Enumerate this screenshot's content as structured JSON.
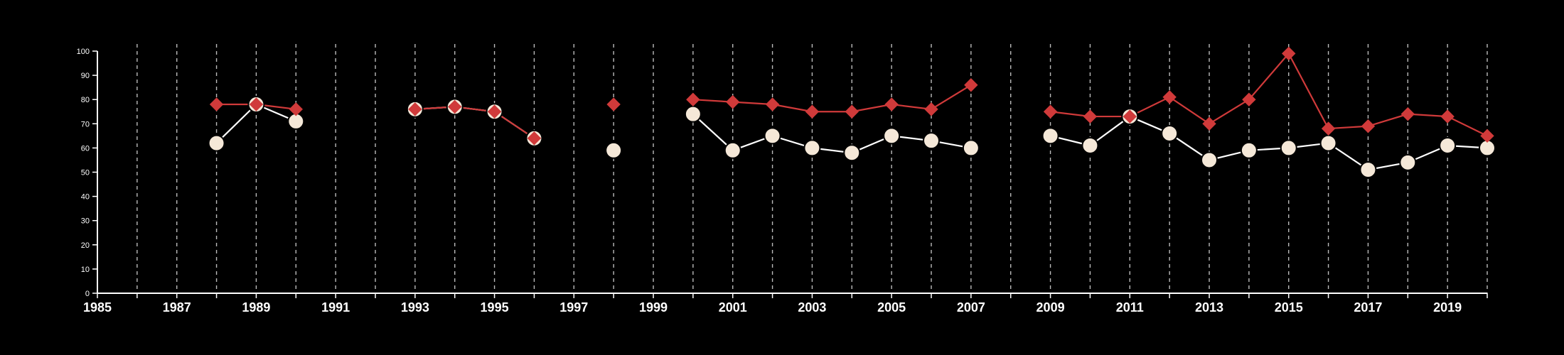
{
  "chart_data": {
    "type": "line",
    "title": "",
    "xlabel": "",
    "ylabel": "",
    "xlim": [
      1985,
      2020
    ],
    "ylim": [
      0,
      100
    ],
    "x_ticks": [
      1985,
      1987,
      1989,
      1991,
      1993,
      1995,
      1997,
      1999,
      2001,
      2003,
      2005,
      2007,
      2009,
      2011,
      2013,
      2015,
      2017,
      2019
    ],
    "y_ticks": [
      0,
      10,
      20,
      30,
      40,
      50,
      60,
      70,
      80,
      90,
      100
    ],
    "vertical_gridlines": "dashed, every year",
    "legend": "none",
    "background_color": "#000000",
    "axis_color": "#ffffff",
    "grid_color": "#bbbbbb",
    "series": [
      {
        "marker": "circle",
        "color": "#f5e8d8",
        "line_color": "#ffffff",
        "x": [
          1988,
          1989,
          1990,
          1993,
          1994,
          1995,
          1996,
          1998,
          2000,
          2001,
          2002,
          2003,
          2004,
          2005,
          2006,
          2007,
          2009,
          2010,
          2011,
          2012,
          2013,
          2014,
          2015,
          2016,
          2017,
          2018,
          2019,
          2020
        ],
        "values": [
          62,
          78,
          71,
          76,
          77,
          75,
          64,
          59,
          74,
          59,
          65,
          60,
          58,
          65,
          63,
          60,
          65,
          61,
          73,
          66,
          55,
          59,
          60,
          62,
          51,
          54,
          61,
          60
        ]
      },
      {
        "marker": "diamond",
        "color": "#d03a3a",
        "line_color": "#d03a3a",
        "x": [
          1988,
          1989,
          1990,
          1993,
          1994,
          1995,
          1996,
          1998,
          2000,
          2001,
          2002,
          2003,
          2004,
          2005,
          2006,
          2007,
          2009,
          2010,
          2011,
          2012,
          2013,
          2014,
          2015,
          2016,
          2017,
          2018,
          2019,
          2020
        ],
        "values": [
          78,
          78,
          76,
          76,
          77,
          75,
          64,
          78,
          80,
          79,
          78,
          75,
          75,
          78,
          76,
          86,
          75,
          73,
          73,
          81,
          70,
          80,
          99,
          68,
          69,
          74,
          73,
          65
        ]
      }
    ]
  }
}
